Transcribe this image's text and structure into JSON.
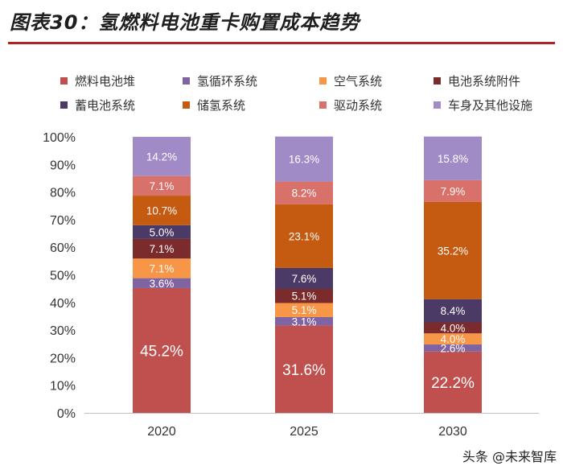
{
  "header": {
    "title": "图表30：氢燃料电池重卡购置成本趋势"
  },
  "watermark": {
    "text": "头条 @未来智库"
  },
  "colors": {
    "fuel_cell_stack": "#c0504d",
    "hydrogen_circulation": "#8064a2",
    "air_system": "#f79646",
    "fc_accessories": "#7b2b2b",
    "battery_system": "#4b3a66",
    "h2_storage": "#c55a11",
    "drive_system": "#d9716b",
    "body_other": "#a08bc6"
  },
  "chart_data": {
    "type": "bar",
    "stacked": true,
    "title": "氢燃料电池重卡购置成本趋势",
    "xlabel": "",
    "ylabel": "",
    "ylim": [
      0,
      100
    ],
    "yticks": [
      "0%",
      "10%",
      "20%",
      "30%",
      "40%",
      "50%",
      "60%",
      "70%",
      "80%",
      "90%",
      "100%"
    ],
    "categories": [
      "2020",
      "2025",
      "2030"
    ],
    "legend_position": "top",
    "series": [
      {
        "key": "fuel_cell_stack",
        "name": "燃料电池堆",
        "values": [
          45.2,
          31.6,
          22.2
        ],
        "labels": [
          "45.2%",
          "31.6%",
          "22.2%"
        ]
      },
      {
        "key": "hydrogen_circulation",
        "name": "氢循环系统",
        "values": [
          3.6,
          3.1,
          2.6
        ],
        "labels": [
          "3.6%",
          "3.1%",
          "2.6%"
        ]
      },
      {
        "key": "air_system",
        "name": "空气系统",
        "values": [
          7.1,
          5.1,
          4.0
        ],
        "labels": [
          "7.1%",
          "5.1%",
          "4.0%"
        ]
      },
      {
        "key": "fc_accessories",
        "name": "电池系统附件",
        "values": [
          7.1,
          5.1,
          4.0
        ],
        "labels": [
          "7.1%",
          "5.1%",
          "4.0%"
        ]
      },
      {
        "key": "battery_system",
        "name": "蓄电池系统",
        "values": [
          5.0,
          7.6,
          8.4
        ],
        "labels": [
          "5.0%",
          "7.6%",
          "8.4%"
        ]
      },
      {
        "key": "h2_storage",
        "name": "储氢系统",
        "values": [
          10.7,
          23.1,
          35.2
        ],
        "labels": [
          "10.7%",
          "23.1%",
          "35.2%"
        ]
      },
      {
        "key": "drive_system",
        "name": "驱动系统",
        "values": [
          7.1,
          8.2,
          7.9
        ],
        "labels": [
          "7.1%",
          "8.2%",
          "7.9%"
        ]
      },
      {
        "key": "body_other",
        "name": "车身及其他设施",
        "values": [
          14.2,
          16.3,
          15.8
        ],
        "labels": [
          "14.2%",
          "16.3%",
          "15.8%"
        ]
      }
    ]
  }
}
